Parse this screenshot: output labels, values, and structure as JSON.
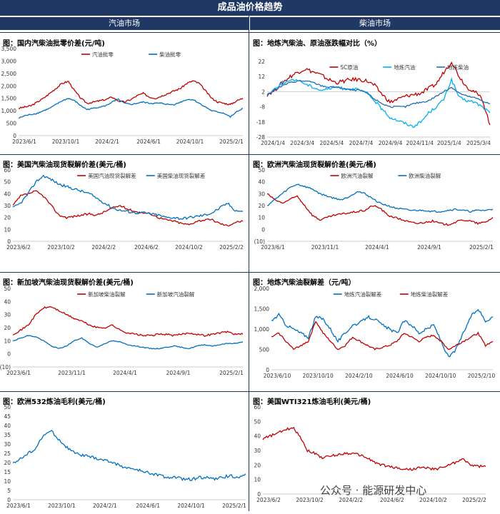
{
  "main_title": "成品油价格趋势",
  "left_header": "汽油市场",
  "right_header": "柴油市场",
  "watermark": "公众号 · 能源研发中心",
  "colors": {
    "red": "#c00000",
    "blue": "#0070c0",
    "cyan": "#00b0f0",
    "navy": "#1f3864"
  },
  "chart_data": [
    {
      "id": "c1",
      "type": "line",
      "title": "图：国内汽柴油批零价差(元/吨)",
      "yticks": [
        "3,500",
        "3,000",
        "2,500",
        "2,000",
        "1,500",
        "1,000",
        "500",
        "0"
      ],
      "ylim": [
        0,
        3500
      ],
      "xticks": [
        "2023/6/1",
        "2023/10/1",
        "2024/2/1",
        "2024/6/1",
        "2024/10/1",
        "2025/2/1"
      ],
      "legend": "top-center",
      "series": [
        {
          "name": "汽油批零",
          "color": "#c00000",
          "values": [
            1100,
            1150,
            1200,
            1350,
            1500,
            1700,
            1900,
            2100,
            2180,
            1800,
            1500,
            1300,
            1350,
            1400,
            1450,
            1550,
            1400,
            1350,
            1450,
            1600,
            1700,
            1550,
            1500,
            1600,
            1700,
            1800,
            1900,
            2100,
            2200,
            2100,
            1800,
            1500,
            1350,
            1300,
            1250,
            1400,
            1500
          ]
        },
        {
          "name": "柴油批零",
          "color": "#0070c0",
          "values": [
            700,
            800,
            850,
            900,
            1000,
            1100,
            1250,
            1400,
            1500,
            1400,
            1200,
            1050,
            1100,
            1150,
            1200,
            1350,
            1450,
            1300,
            1250,
            1300,
            1350,
            1300,
            1300,
            1300,
            1250,
            1250,
            1350,
            1450,
            1450,
            1300,
            1150,
            1000,
            950,
            900,
            750,
            950,
            1100
          ]
        }
      ]
    },
    {
      "id": "c2",
      "type": "line",
      "title": "图：地炼汽柴油、原油涨跌幅对比（%）",
      "yticks": [
        "22",
        "12",
        "2",
        "-8",
        "-18",
        "-28"
      ],
      "ylim": [
        -28,
        22
      ],
      "xticks": [
        "2024/1/4",
        "2024/3/4",
        "2024/5/4",
        "2024/7/4",
        "2024/9/4",
        "2024/11/4",
        "2025/1/4",
        "2025/3/4"
      ],
      "legend": "top-center",
      "series": [
        {
          "name": "SC原油",
          "color": "#c00000",
          "values": [
            0,
            3,
            8,
            12,
            15,
            17,
            15,
            13,
            10,
            8,
            9,
            10,
            10,
            9,
            6,
            0,
            -5,
            -3,
            -1,
            0,
            1,
            4,
            7,
            15,
            22,
            12,
            5,
            2,
            -3,
            -20
          ]
        },
        {
          "name": "地炼汽油",
          "color": "#00b0f0",
          "values": [
            0,
            4,
            8,
            9,
            10,
            7,
            5,
            3,
            4,
            5,
            4,
            4,
            3,
            1,
            -4,
            -10,
            -15,
            -17,
            -19,
            -21,
            -18,
            -12,
            -8,
            -3,
            10,
            -2,
            -4,
            -5,
            -8,
            -12
          ]
        },
        {
          "name": "地炼柴油",
          "color": "#1f6fb5",
          "values": [
            0,
            3,
            6,
            8,
            9,
            9,
            8,
            6,
            5,
            5,
            4,
            3,
            3,
            1,
            -3,
            -6,
            -8,
            -8,
            -8,
            -6,
            -5,
            -4,
            -1,
            2,
            5,
            1,
            -1,
            -2,
            -4,
            -6
          ]
        }
      ]
    },
    {
      "id": "c3",
      "type": "line",
      "title": "图：美国汽柴油现货裂解价差(美元/桶)",
      "yticks": [
        "60",
        "50",
        "40",
        "30",
        "20",
        "10",
        "0"
      ],
      "ylim": [
        0,
        60
      ],
      "xticks": [
        "2023/6/2",
        "2023/10/2",
        "2024/2/2",
        "2024/6/2",
        "2024/10/2",
        "2025/2/2"
      ],
      "legend": "top-center",
      "series": [
        {
          "name": "美国汽油现货裂解差",
          "color": "#c00000",
          "values": [
            30,
            38,
            40,
            42,
            38,
            30,
            22,
            20,
            21,
            22,
            23,
            22,
            25,
            28,
            30,
            27,
            25,
            24,
            23,
            20,
            18,
            17,
            15,
            14,
            17,
            18,
            18,
            15,
            13,
            16,
            17
          ]
        },
        {
          "name": "美国柴油现货裂解差",
          "color": "#0070c0",
          "values": [
            28,
            32,
            40,
            50,
            55,
            52,
            48,
            46,
            44,
            42,
            40,
            36,
            32,
            28,
            26,
            25,
            24,
            24,
            23,
            22,
            20,
            20,
            19,
            20,
            21,
            22,
            24,
            28,
            32,
            26,
            25
          ]
        }
      ]
    },
    {
      "id": "c4",
      "type": "line",
      "title": "图：欧洲汽柴油现货裂解价差(美元/桶)",
      "yticks": [
        "50",
        "40",
        "30",
        "20",
        "10",
        "0",
        "(10)"
      ],
      "ylim": [
        -10,
        50
      ],
      "xticks": [
        "2023/6/1",
        "2023/11/1",
        "2024/4/1",
        "2024/9/1",
        "2025/2/1"
      ],
      "legend": "top-center",
      "series": [
        {
          "name": "欧洲汽油裂解",
          "color": "#c00000",
          "values": [
            30,
            25,
            22,
            25,
            28,
            20,
            12,
            8,
            10,
            12,
            13,
            14,
            15,
            16,
            20,
            18,
            12,
            10,
            8,
            6,
            5,
            6,
            7,
            5,
            4,
            6,
            8,
            7,
            5,
            6,
            10
          ]
        },
        {
          "name": "欧洲柴油裂解",
          "color": "#0070c0",
          "values": [
            20,
            25,
            30,
            35,
            38,
            36,
            34,
            30,
            28,
            26,
            25,
            28,
            32,
            30,
            26,
            22,
            20,
            18,
            17,
            16,
            16,
            16,
            15,
            15,
            16,
            17,
            16,
            15,
            16,
            16,
            17
          ]
        }
      ]
    },
    {
      "id": "c5",
      "type": "line",
      "title": "图：新加坡汽柴油现货裂解价差(美元/桶)",
      "yticks": [
        "50",
        "40",
        "30",
        "20",
        "10",
        "0",
        "(10)"
      ],
      "ylim": [
        -10,
        50
      ],
      "xticks": [
        "2023/6/1",
        "2023/11/1",
        "2024/4/1",
        "2024/9/1",
        "2025/2/1"
      ],
      "legend": "top-center",
      "series": [
        {
          "name": "新加坡柴油裂解",
          "color": "#c00000",
          "values": [
            15,
            18,
            22,
            30,
            35,
            36,
            33,
            30,
            27,
            25,
            22,
            20,
            20,
            22,
            18,
            16,
            15,
            14,
            14,
            15,
            15,
            14,
            15,
            16,
            15,
            14,
            15,
            16,
            17,
            15,
            15
          ]
        },
        {
          "name": "新加坡汽油裂解",
          "color": "#0070c0",
          "values": [
            10,
            12,
            14,
            13,
            10,
            6,
            4,
            6,
            10,
            12,
            8,
            5,
            8,
            10,
            9,
            7,
            6,
            5,
            4,
            4,
            5,
            6,
            5,
            4,
            6,
            7,
            6,
            7,
            8,
            8,
            9
          ]
        }
      ]
    },
    {
      "id": "c6",
      "type": "line",
      "title": "图：地炼汽柴油裂解差（元/吨）",
      "yticks": [
        "2,000",
        "1,500",
        "1,000",
        "500",
        "0"
      ],
      "ylim": [
        0,
        2000
      ],
      "xticks": [
        "2023/6/10",
        "2023/10/10",
        "2024/2/10",
        "2024/6/10",
        "2024/10/10",
        "2025/2/10"
      ],
      "legend": "top-center",
      "series": [
        {
          "name": "地炼汽油裂解差",
          "color": "#0070c0",
          "values": [
            1200,
            1350,
            1100,
            1000,
            900,
            800,
            1300,
            1250,
            1000,
            700,
            900,
            1100,
            1150,
            1300,
            1250,
            1100,
            1000,
            900,
            1200,
            1100,
            900,
            1000,
            1100,
            700,
            300,
            500,
            900,
            1300,
            1500,
            1200,
            1300
          ]
        },
        {
          "name": "地炼柴油裂解差",
          "color": "#c00000",
          "values": [
            800,
            900,
            700,
            500,
            600,
            700,
            1200,
            900,
            700,
            500,
            600,
            800,
            700,
            600,
            500,
            550,
            600,
            700,
            900,
            800,
            700,
            800,
            850,
            700,
            500,
            600,
            700,
            800,
            900,
            600,
            700
          ]
        }
      ]
    },
    {
      "id": "c7",
      "type": "line",
      "title": "图：欧洲532炼油毛利(美元/桶)",
      "yticks": [
        "50",
        "45",
        "40",
        "35",
        "30",
        "25",
        "20",
        "15",
        "10",
        "5",
        "0"
      ],
      "ylim": [
        0,
        50
      ],
      "xticks": [
        "2023/6/1",
        "2023/10/1",
        "2024/2/1",
        "2024/6/1",
        "2024/10/1",
        "2025/2/1"
      ],
      "series": [
        {
          "name": "欧洲532炼油毛利",
          "color": "#0070c0",
          "values": [
            20,
            22,
            25,
            28,
            35,
            37,
            32,
            28,
            25,
            24,
            23,
            22,
            21,
            20,
            18,
            17,
            16,
            15,
            14,
            13,
            12,
            12,
            11,
            11,
            12,
            12,
            11,
            12,
            13,
            12,
            14
          ]
        }
      ]
    },
    {
      "id": "c8",
      "type": "line",
      "title": "图：美国WTI321炼油毛利(美元/桶)",
      "yticks": [
        "60",
        "50",
        "40",
        "30",
        "20",
        "10",
        "0"
      ],
      "ylim": [
        0,
        60
      ],
      "xticks": [
        "2023/6/2",
        "2023/10/2",
        "2024/2/2",
        "2024/6/2",
        "2024/10/2",
        "2025/2/2"
      ],
      "series": [
        {
          "name": "美国WTI321炼油毛利",
          "color": "#c00000",
          "values": [
            38,
            40,
            42,
            44,
            46,
            40,
            30,
            28,
            25,
            26,
            27,
            28,
            28,
            27,
            25,
            22,
            20,
            19,
            18,
            17,
            17,
            18,
            18,
            17,
            18,
            20,
            22,
            24,
            20,
            19,
            19
          ]
        }
      ]
    }
  ]
}
